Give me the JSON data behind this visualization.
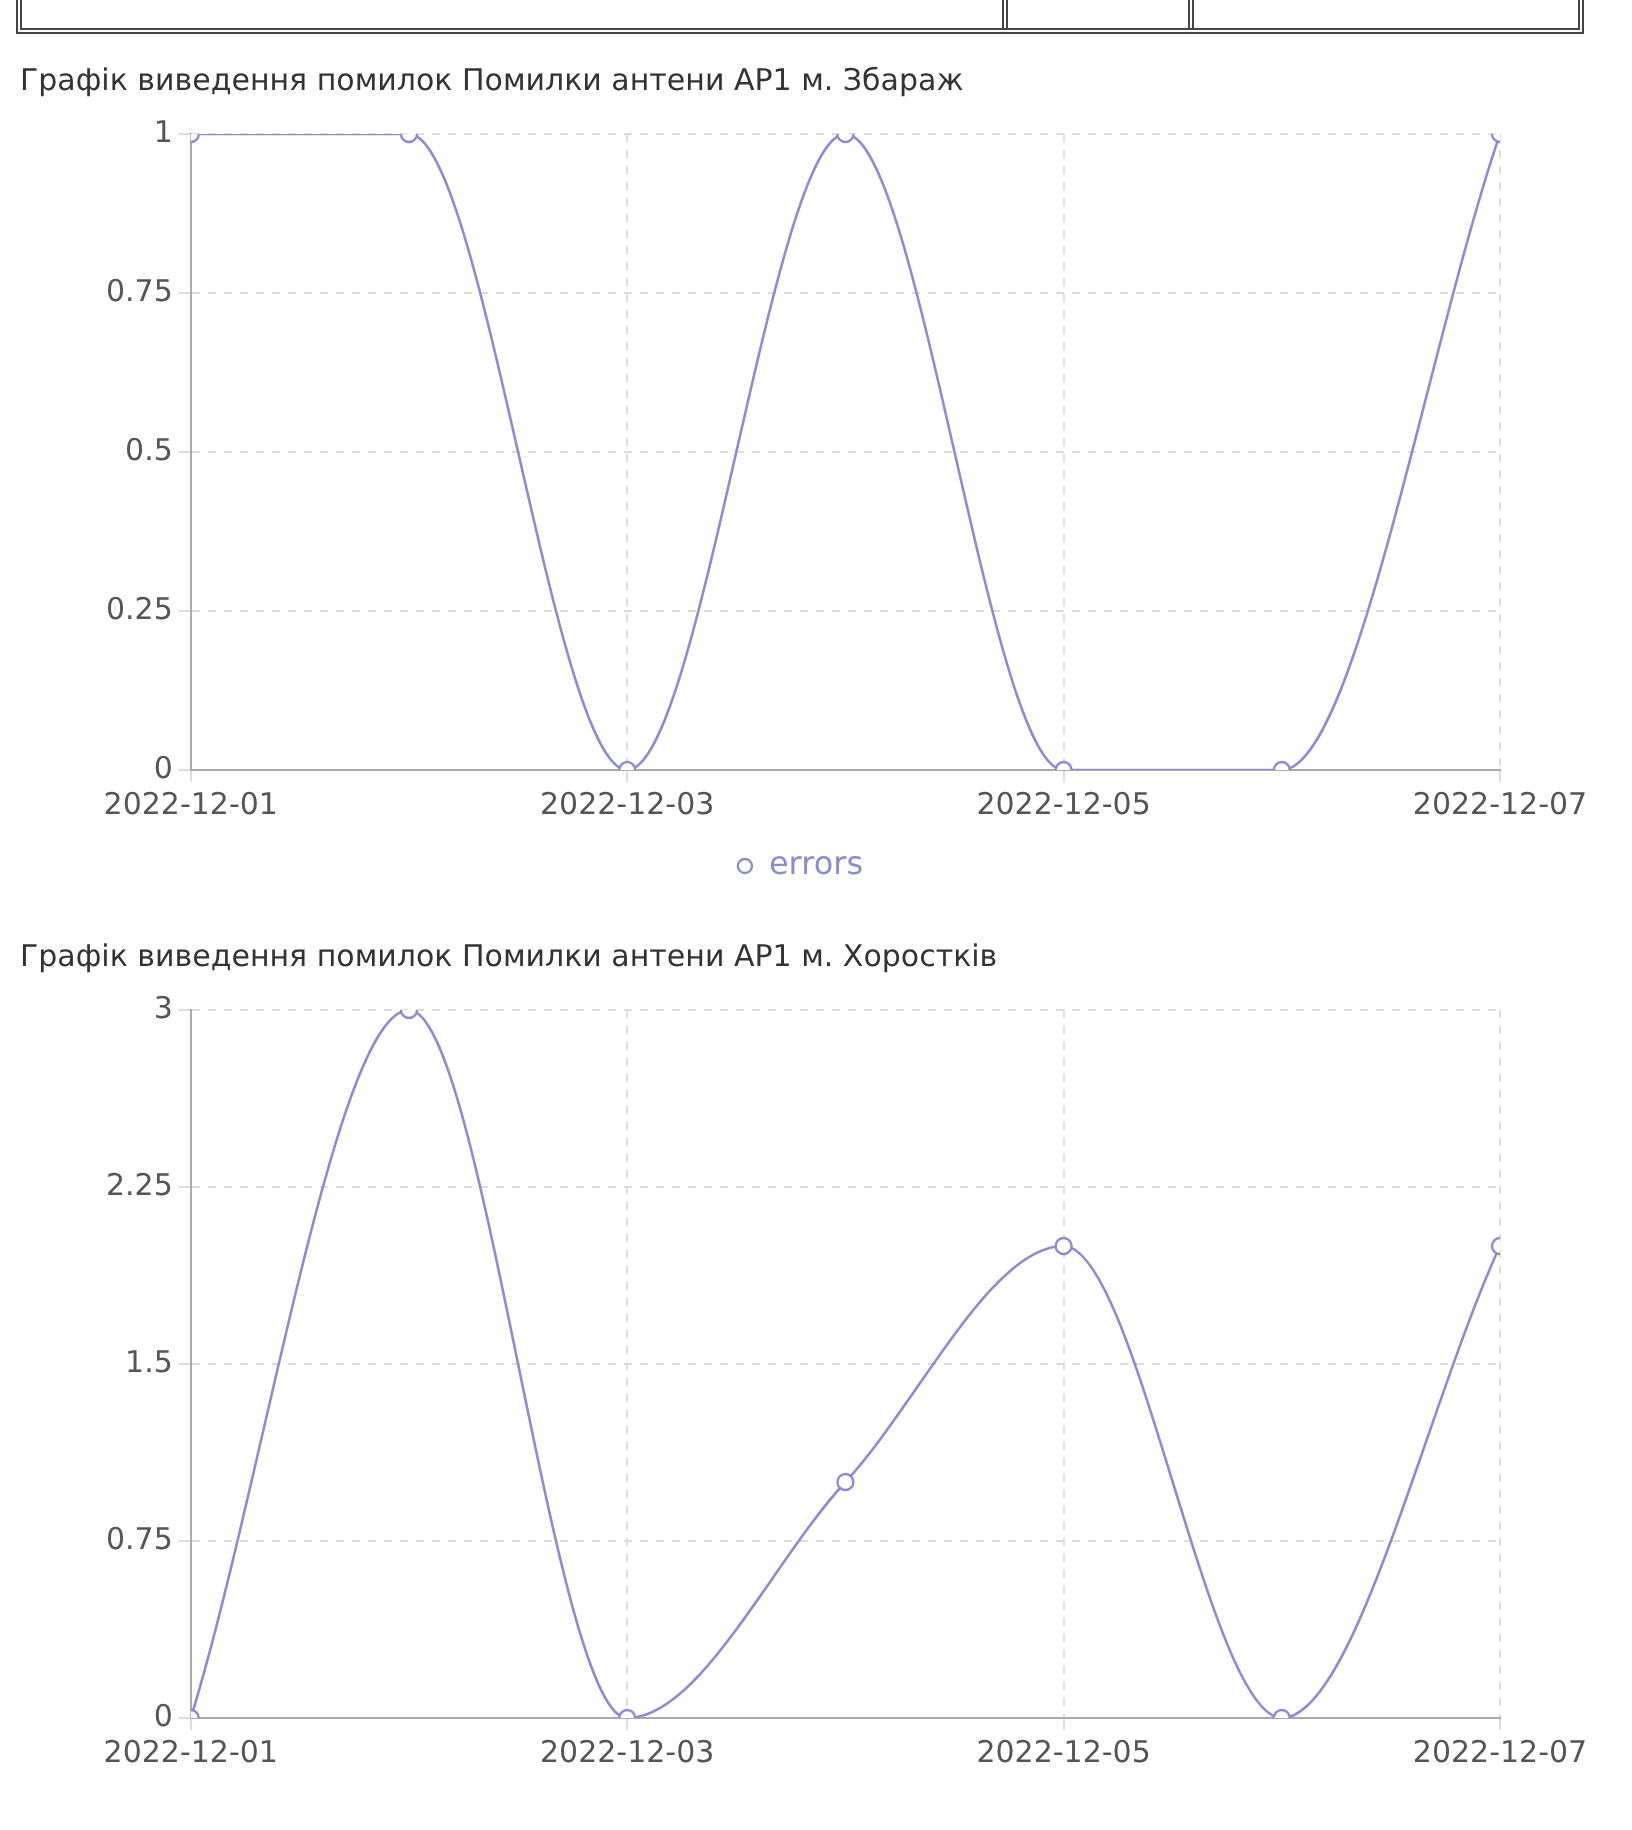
{
  "chart_data": [
    {
      "type": "line",
      "title": "Графік виведення помилок Помилки антени AP1 м. Збараж",
      "x": [
        "2022-12-01",
        "2022-12-02",
        "2022-12-03",
        "2022-12-04",
        "2022-12-05",
        "2022-12-06",
        "2022-12-07"
      ],
      "series": [
        {
          "name": "errors",
          "color": "#8c8cd0",
          "values": [
            1,
            1,
            0,
            1,
            0,
            0,
            1
          ]
        }
      ],
      "xlim": [
        "2022-12-01",
        "2022-12-07"
      ],
      "xticks": [
        "2022-12-01",
        "2022-12-03",
        "2022-12-05",
        "2022-12-07"
      ],
      "ylim": [
        0,
        1
      ],
      "yticks": [
        0,
        0.25,
        0.5,
        0.75,
        1
      ],
      "grid": true,
      "legend": "bottom",
      "marker": "circle",
      "line_style": "solid"
    },
    {
      "type": "line",
      "title": "Графік виведення помилок Помилки антени AP1 м. Хоростків",
      "x": [
        "2022-12-01",
        "2022-12-02",
        "2022-12-03",
        "2022-12-04",
        "2022-12-05",
        "2022-12-06",
        "2022-12-07"
      ],
      "series": [
        {
          "color": "#8c8cd0",
          "values": [
            0,
            3,
            0,
            1,
            2,
            0,
            2
          ]
        }
      ],
      "xlim": [
        "2022-12-01",
        "2022-12-07"
      ],
      "xticks": [
        "2022-12-01",
        "2022-12-03",
        "2022-12-05",
        "2022-12-07"
      ],
      "ylim": [
        0,
        3
      ],
      "yticks": [
        0,
        0.75,
        1.5,
        2.25,
        3
      ],
      "grid": true,
      "legend": false,
      "marker": "circle",
      "line_style": "solid"
    }
  ]
}
